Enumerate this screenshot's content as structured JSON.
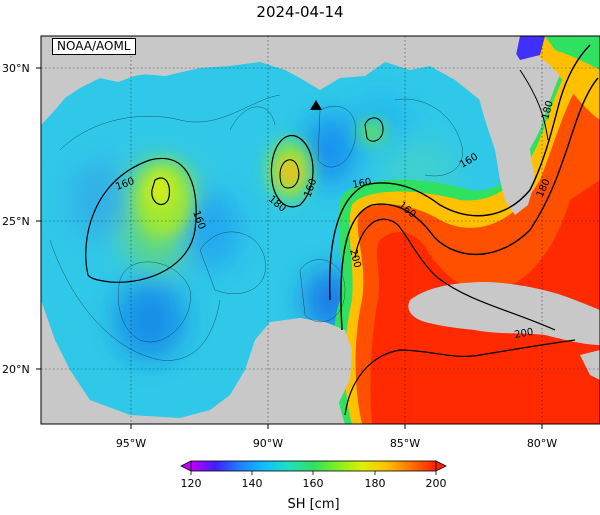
{
  "title": "2024-04-14",
  "credit": "NOAA/AOML",
  "lat_labels": [
    "30°N",
    "25°N",
    "20°N"
  ],
  "lon_labels": [
    "95°W",
    "90°W",
    "85°W",
    "80°W"
  ],
  "colorbar": {
    "label": "SH [cm]",
    "min": 120,
    "max": 200,
    "ticks": [
      "120",
      "140",
      "160",
      "180",
      "200"
    ],
    "stops": [
      "#c000ff",
      "#4020ff",
      "#2080ff",
      "#10c0ff",
      "#20e0c0",
      "#30e060",
      "#80f020",
      "#e0f000",
      "#ffc000",
      "#ff7000",
      "#ff2000"
    ]
  },
  "contour_labels": [
    "160",
    "160",
    "180",
    "160",
    "160",
    "180",
    "160",
    "160",
    "200",
    "180",
    "200"
  ],
  "colors": {
    "land": "#c8c8c8",
    "frame": "#000000"
  }
}
